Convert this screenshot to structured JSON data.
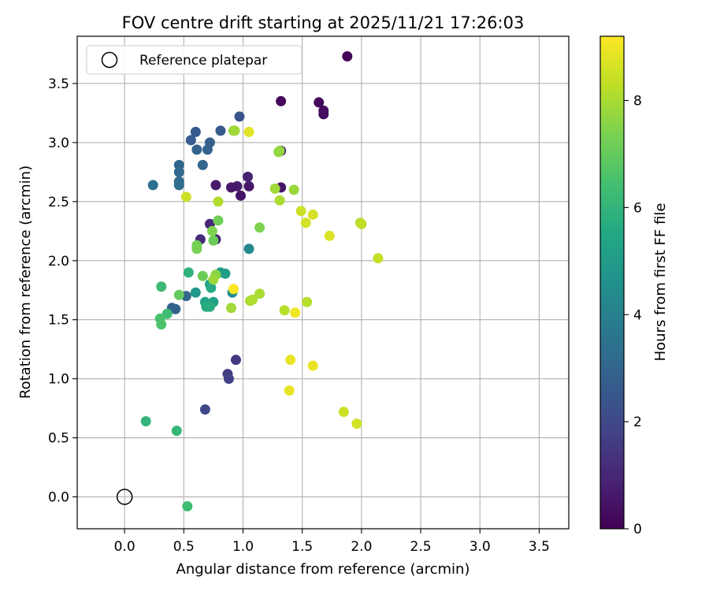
{
  "chart_data": {
    "type": "scatter",
    "title": "FOV centre drift starting at 2025/11/21 17:26:03",
    "xlabel": "Angular distance from reference (arcmin)",
    "ylabel": "Rotation from reference (arcmin)",
    "xlim": [
      -0.4,
      3.75
    ],
    "ylim": [
      -0.27,
      3.9
    ],
    "xticks": [
      0.0,
      0.5,
      1.0,
      1.5,
      2.0,
      2.5,
      3.0,
      3.5
    ],
    "xtick_labels": [
      "0.0",
      "0.5",
      "1.0",
      "1.5",
      "2.0",
      "2.5",
      "3.0",
      "3.5"
    ],
    "yticks": [
      0.0,
      0.5,
      1.0,
      1.5,
      2.0,
      2.5,
      3.0,
      3.5
    ],
    "ytick_labels": [
      "0.0",
      "0.5",
      "1.0",
      "1.5",
      "2.0",
      "2.5",
      "3.0",
      "3.5"
    ],
    "grid": true,
    "legend": {
      "placement": "top-left",
      "entries": [
        "Reference platepar"
      ]
    },
    "reference_point": {
      "x": 0.0,
      "y": 0.0
    },
    "colorbar": {
      "label": "Hours from first FF file",
      "colormap": "viridis",
      "range": [
        0,
        9.2
      ],
      "ticks": [
        0,
        2,
        4,
        6,
        8
      ],
      "tick_labels": [
        "0",
        "2",
        "4",
        "6",
        "8"
      ]
    },
    "points": [
      {
        "x": 1.88,
        "y": 3.73,
        "c": 0.1
      },
      {
        "x": 1.32,
        "y": 3.35,
        "c": 0.2
      },
      {
        "x": 1.64,
        "y": 3.34,
        "c": 0.2
      },
      {
        "x": 1.68,
        "y": 3.27,
        "c": 0.3
      },
      {
        "x": 1.68,
        "y": 3.24,
        "c": 0.3
      },
      {
        "x": 1.32,
        "y": 2.93,
        "c": 0.4
      },
      {
        "x": 1.32,
        "y": 2.62,
        "c": 0.5
      },
      {
        "x": 1.04,
        "y": 2.71,
        "c": 0.9
      },
      {
        "x": 1.05,
        "y": 2.63,
        "c": 0.6
      },
      {
        "x": 0.95,
        "y": 2.63,
        "c": 0.7
      },
      {
        "x": 0.9,
        "y": 2.62,
        "c": 0.6
      },
      {
        "x": 0.98,
        "y": 2.55,
        "c": 0.5
      },
      {
        "x": 0.77,
        "y": 2.64,
        "c": 0.7
      },
      {
        "x": 0.72,
        "y": 2.31,
        "c": 1.0
      },
      {
        "x": 0.64,
        "y": 2.18,
        "c": 1.1
      },
      {
        "x": 0.77,
        "y": 2.18,
        "c": 0.8
      },
      {
        "x": 0.94,
        "y": 1.16,
        "c": 1.5
      },
      {
        "x": 0.87,
        "y": 1.04,
        "c": 1.6
      },
      {
        "x": 0.88,
        "y": 1.0,
        "c": 1.8
      },
      {
        "x": 0.68,
        "y": 0.74,
        "c": 2.0
      },
      {
        "x": 0.97,
        "y": 3.22,
        "c": 2.4
      },
      {
        "x": 0.6,
        "y": 3.09,
        "c": 2.6
      },
      {
        "x": 0.81,
        "y": 3.1,
        "c": 2.6
      },
      {
        "x": 0.56,
        "y": 3.02,
        "c": 2.7
      },
      {
        "x": 0.72,
        "y": 3.0,
        "c": 2.8
      },
      {
        "x": 0.61,
        "y": 2.94,
        "c": 2.9
      },
      {
        "x": 0.7,
        "y": 2.94,
        "c": 2.9
      },
      {
        "x": 0.46,
        "y": 2.81,
        "c": 3.0
      },
      {
        "x": 0.66,
        "y": 2.81,
        "c": 3.0
      },
      {
        "x": 0.46,
        "y": 2.75,
        "c": 3.1
      },
      {
        "x": 0.46,
        "y": 2.67,
        "c": 3.1
      },
      {
        "x": 0.24,
        "y": 2.64,
        "c": 3.4
      },
      {
        "x": 0.46,
        "y": 2.64,
        "c": 3.3
      },
      {
        "x": 0.4,
        "y": 1.6,
        "c": 2.8
      },
      {
        "x": 0.43,
        "y": 1.59,
        "c": 2.9
      },
      {
        "x": 0.52,
        "y": 1.7,
        "c": 3.0
      },
      {
        "x": 1.05,
        "y": 2.1,
        "c": 4.3
      },
      {
        "x": 0.91,
        "y": 1.73,
        "c": 4.5
      },
      {
        "x": 0.6,
        "y": 1.73,
        "c": 4.8
      },
      {
        "x": 0.81,
        "y": 1.9,
        "c": 5.0
      },
      {
        "x": 0.85,
        "y": 1.89,
        "c": 5.1
      },
      {
        "x": 0.75,
        "y": 1.65,
        "c": 5.3
      },
      {
        "x": 0.68,
        "y": 1.65,
        "c": 5.4
      },
      {
        "x": 0.72,
        "y": 1.8,
        "c": 5.4
      },
      {
        "x": 0.73,
        "y": 1.77,
        "c": 5.6
      },
      {
        "x": 0.69,
        "y": 1.61,
        "c": 5.6
      },
      {
        "x": 0.72,
        "y": 1.61,
        "c": 5.7
      },
      {
        "x": 0.54,
        "y": 1.9,
        "c": 5.9
      },
      {
        "x": 0.31,
        "y": 1.78,
        "c": 6.2
      },
      {
        "x": 0.36,
        "y": 1.55,
        "c": 6.3
      },
      {
        "x": 0.3,
        "y": 1.51,
        "c": 6.5
      },
      {
        "x": 0.31,
        "y": 1.46,
        "c": 6.6
      },
      {
        "x": 0.18,
        "y": 0.64,
        "c": 6.0
      },
      {
        "x": 0.44,
        "y": 0.56,
        "c": 6.1
      },
      {
        "x": 0.53,
        "y": -0.08,
        "c": 6.3
      },
      {
        "x": 0.46,
        "y": 1.71,
        "c": 7.0
      },
      {
        "x": 0.66,
        "y": 1.87,
        "c": 7.1
      },
      {
        "x": 0.75,
        "y": 2.17,
        "c": 7.1
      },
      {
        "x": 0.79,
        "y": 2.34,
        "c": 7.2
      },
      {
        "x": 0.61,
        "y": 2.13,
        "c": 7.2
      },
      {
        "x": 0.61,
        "y": 2.1,
        "c": 7.3
      },
      {
        "x": 0.74,
        "y": 2.25,
        "c": 7.4
      },
      {
        "x": 0.77,
        "y": 1.88,
        "c": 7.6
      },
      {
        "x": 0.75,
        "y": 1.84,
        "c": 7.8
      },
      {
        "x": 1.14,
        "y": 2.28,
        "c": 7.4
      },
      {
        "x": 1.3,
        "y": 2.92,
        "c": 7.6
      },
      {
        "x": 1.31,
        "y": 2.93,
        "c": 7.7
      },
      {
        "x": 0.92,
        "y": 3.1,
        "c": 7.7
      },
      {
        "x": 0.93,
        "y": 3.1,
        "c": 7.9
      },
      {
        "x": 1.43,
        "y": 2.6,
        "c": 7.8
      },
      {
        "x": 1.27,
        "y": 2.61,
        "c": 7.9
      },
      {
        "x": 1.31,
        "y": 2.51,
        "c": 8.0
      },
      {
        "x": 0.79,
        "y": 2.5,
        "c": 8.1
      },
      {
        "x": 0.9,
        "y": 1.6,
        "c": 7.9
      },
      {
        "x": 1.06,
        "y": 1.66,
        "c": 8.0
      },
      {
        "x": 1.08,
        "y": 1.67,
        "c": 8.1
      },
      {
        "x": 1.14,
        "y": 1.72,
        "c": 8.0
      },
      {
        "x": 1.35,
        "y": 1.58,
        "c": 8.2
      },
      {
        "x": 1.54,
        "y": 1.65,
        "c": 8.2
      },
      {
        "x": 1.99,
        "y": 2.32,
        "c": 8.1
      },
      {
        "x": 2.0,
        "y": 2.31,
        "c": 8.3
      },
      {
        "x": 2.14,
        "y": 2.02,
        "c": 8.4
      },
      {
        "x": 1.49,
        "y": 2.42,
        "c": 8.5
      },
      {
        "x": 1.59,
        "y": 2.39,
        "c": 8.6
      },
      {
        "x": 1.53,
        "y": 2.32,
        "c": 8.6
      },
      {
        "x": 1.73,
        "y": 2.21,
        "c": 8.7
      },
      {
        "x": 1.05,
        "y": 3.09,
        "c": 8.8
      },
      {
        "x": 0.92,
        "y": 1.76,
        "c": 9.2
      },
      {
        "x": 1.44,
        "y": 1.56,
        "c": 9.0
      },
      {
        "x": 1.4,
        "y": 1.16,
        "c": 8.9
      },
      {
        "x": 1.59,
        "y": 1.11,
        "c": 8.9
      },
      {
        "x": 1.39,
        "y": 0.9,
        "c": 8.9
      },
      {
        "x": 1.85,
        "y": 0.72,
        "c": 8.5
      },
      {
        "x": 1.96,
        "y": 0.62,
        "c": 8.6
      },
      {
        "x": 0.52,
        "y": 2.54,
        "c": 8.5
      }
    ]
  }
}
